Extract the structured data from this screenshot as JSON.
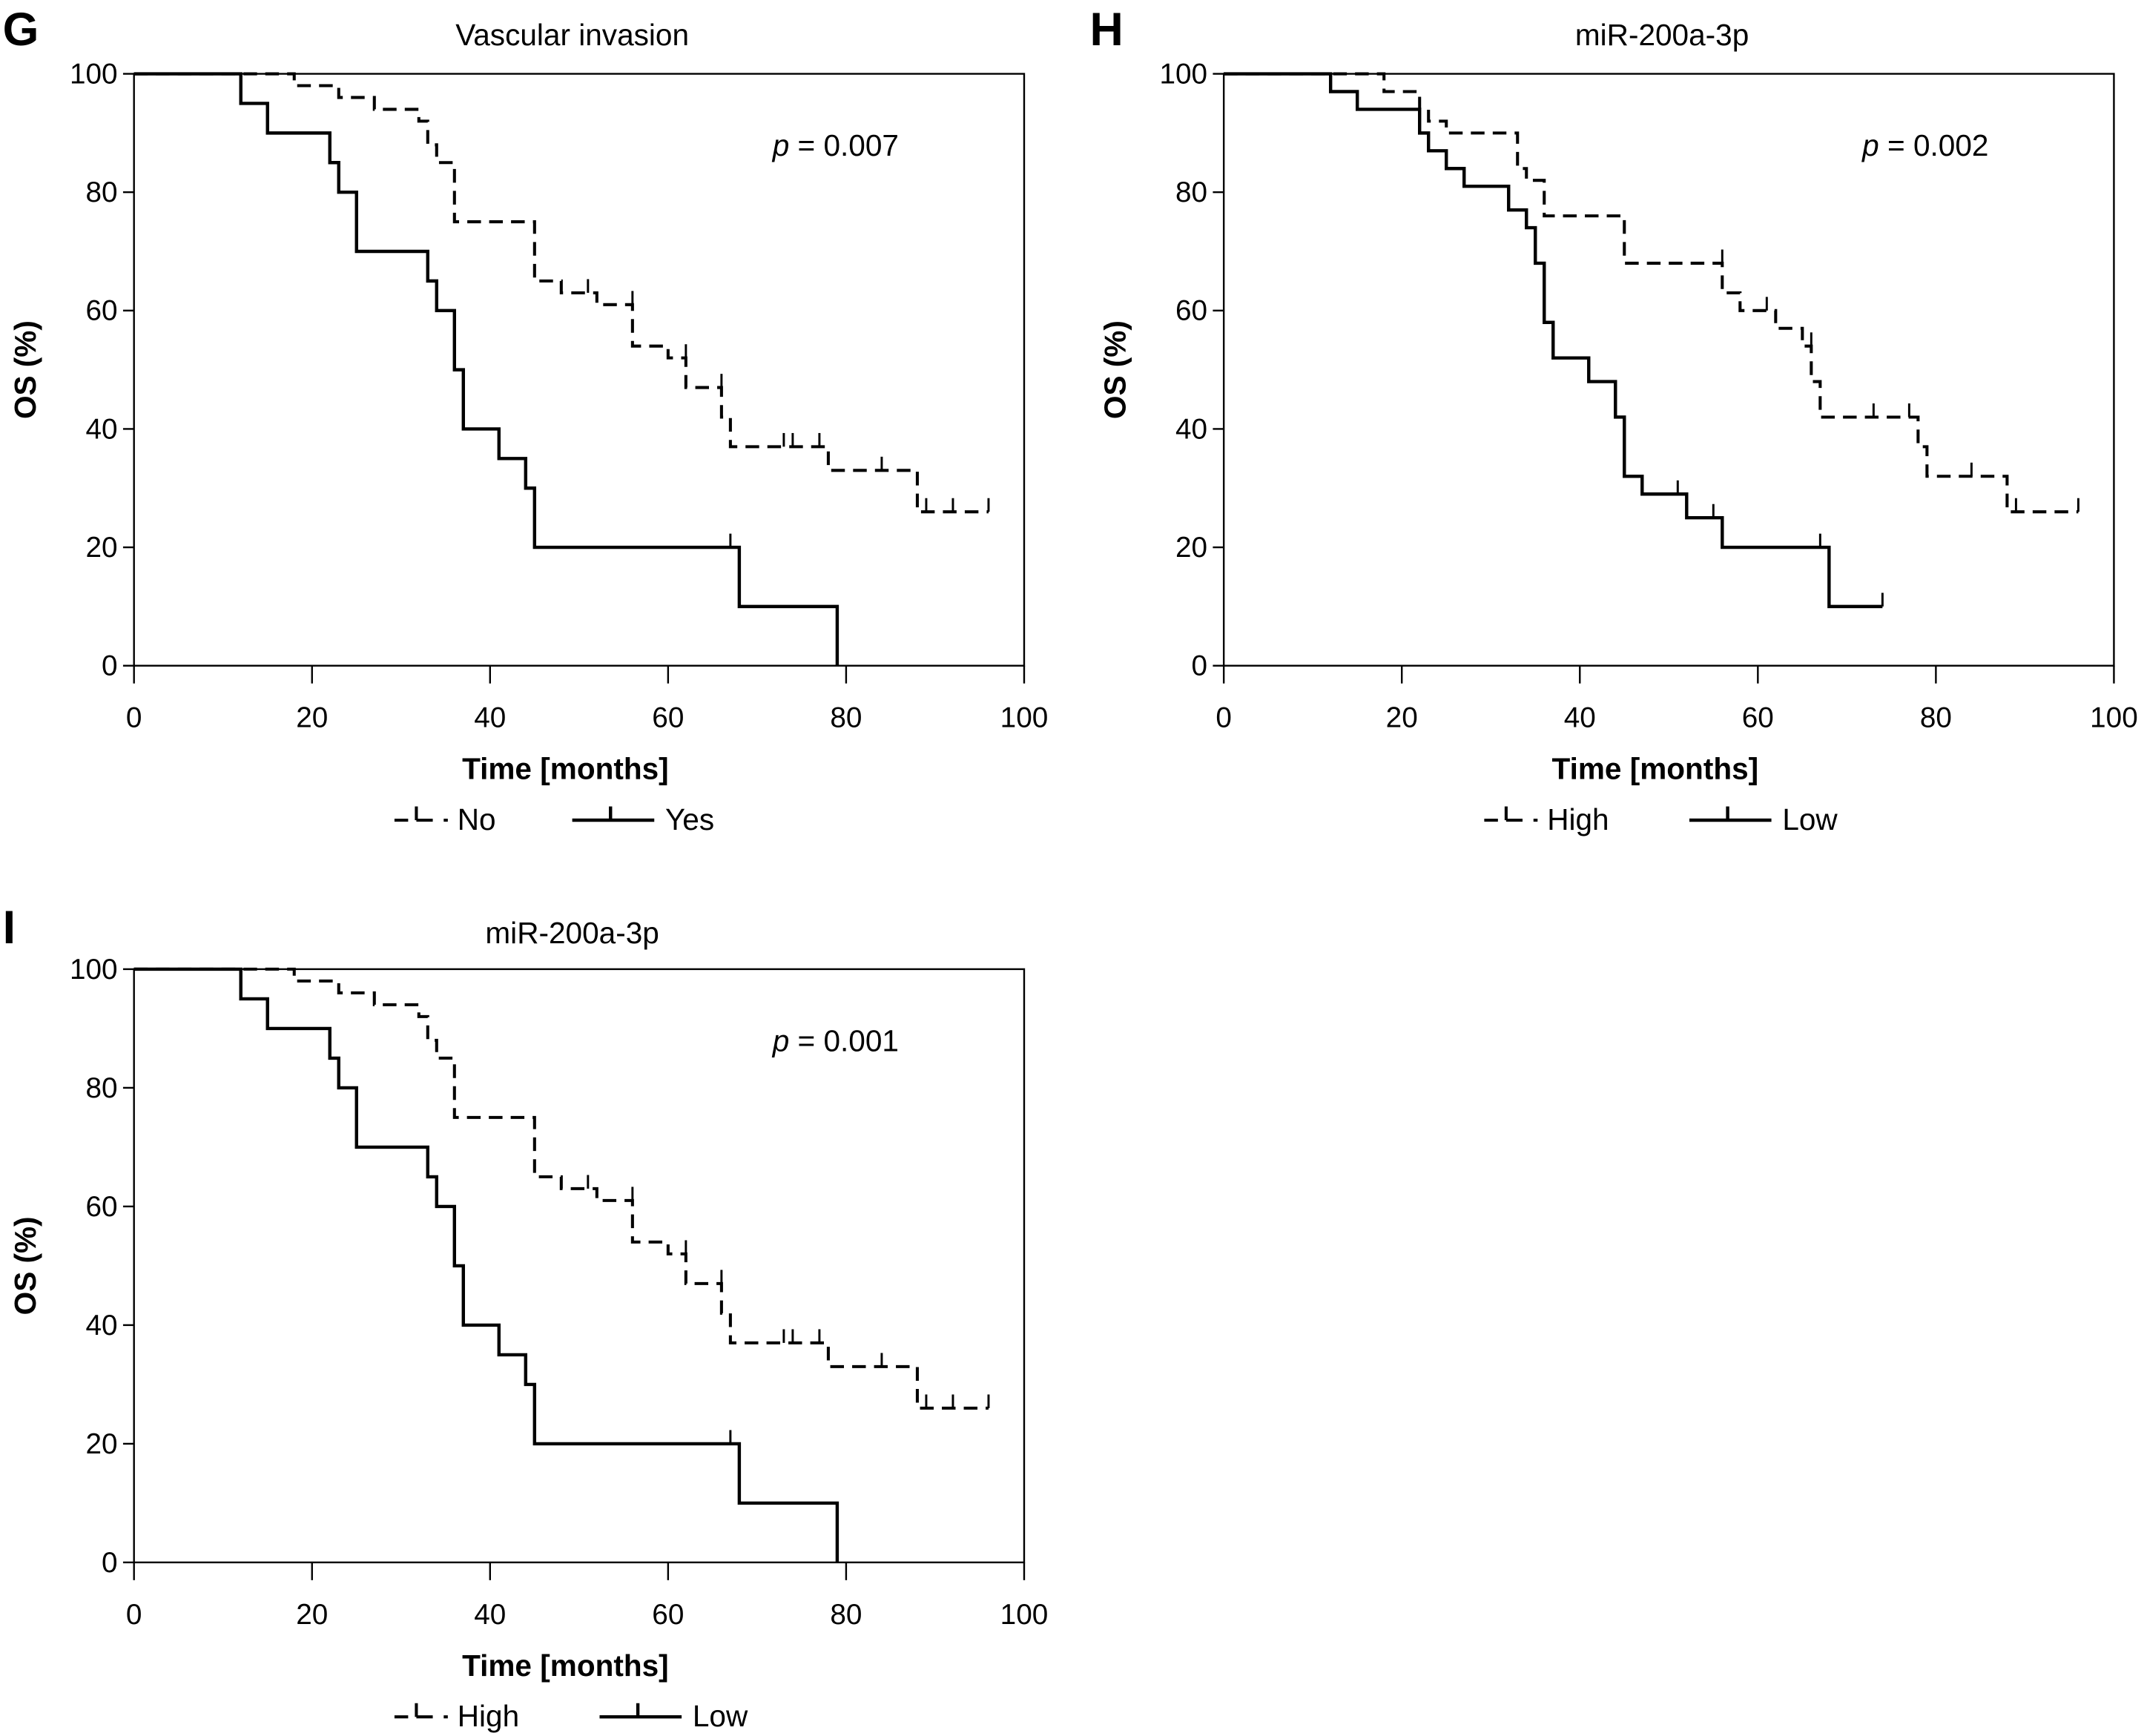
{
  "chart_data": [
    {
      "type": "line",
      "subtype": "kaplan-meier",
      "panel_label": "G",
      "title": "Vascular invasion",
      "xlabel": "Time [months]",
      "ylabel": "OS (%)",
      "xlim": [
        0,
        100
      ],
      "ylim": [
        0,
        100
      ],
      "xticks": [
        "0",
        "20",
        "40",
        "60",
        "80",
        "100"
      ],
      "yticks": [
        "0",
        "20",
        "40",
        "60",
        "80",
        "100"
      ],
      "annotation": {
        "p_label": "p",
        "p_text": " = 0.007"
      },
      "legend": {
        "position": "bottom-center",
        "entries": [
          "No",
          "Yes"
        ]
      },
      "series": [
        {
          "name": "No",
          "style": "dashed",
          "x": [
            0,
            18,
            22,
            23,
            27,
            32,
            33,
            34,
            36,
            44,
            45,
            48,
            52,
            56,
            57,
            60,
            62,
            66,
            67,
            78,
            88,
            96
          ],
          "y": [
            100,
            98,
            98,
            96,
            94,
            92,
            88,
            85,
            75,
            75,
            65,
            63,
            61,
            54,
            54,
            52,
            47,
            42,
            37,
            33,
            26,
            26
          ],
          "censored": [
            [
              51,
              63
            ],
            [
              56,
              61
            ],
            [
              62,
              52
            ],
            [
              66,
              47
            ],
            [
              73,
              37
            ],
            [
              74,
              37
            ],
            [
              77,
              37
            ],
            [
              84,
              33
            ],
            [
              89,
              26
            ],
            [
              92,
              26
            ],
            [
              96,
              26
            ]
          ]
        },
        {
          "name": "Yes",
          "style": "solid",
          "x": [
            0,
            12,
            15,
            22,
            23,
            25,
            33,
            34,
            36,
            37,
            41,
            44,
            45,
            68,
            79
          ],
          "y": [
            100,
            95,
            90,
            85,
            80,
            70,
            65,
            60,
            50,
            40,
            35,
            30,
            20,
            10,
            0
          ],
          "censored": [
            [
              67,
              20
            ]
          ]
        }
      ]
    },
    {
      "type": "line",
      "subtype": "kaplan-meier",
      "panel_label": "H",
      "title": "miR-200a-3p",
      "xlabel": "Time [months]",
      "ylabel": "OS (%)",
      "xlim": [
        0,
        100
      ],
      "ylim": [
        0,
        100
      ],
      "xticks": [
        "0",
        "20",
        "40",
        "60",
        "80",
        "100"
      ],
      "yticks": [
        "0",
        "20",
        "40",
        "60",
        "80",
        "100"
      ],
      "annotation": {
        "p_label": "p",
        "p_text": " = 0.002"
      },
      "legend": {
        "position": "bottom-center",
        "entries": [
          "High",
          "Low"
        ]
      },
      "series": [
        {
          "name": "High",
          "style": "dashed",
          "x": [
            0,
            18,
            22,
            23,
            25,
            33,
            34,
            36,
            45,
            56,
            58,
            62,
            65,
            66,
            67,
            78,
            79,
            88,
            96
          ],
          "y": [
            100,
            97,
            94,
            92,
            90,
            84,
            82,
            76,
            68,
            63,
            60,
            57,
            54,
            48,
            42,
            37,
            32,
            26,
            26
          ],
          "censored": [
            [
              56,
              68
            ],
            [
              61,
              60
            ],
            [
              66,
              54
            ],
            [
              73,
              42
            ],
            [
              77,
              42
            ],
            [
              84,
              32
            ],
            [
              89,
              26
            ],
            [
              96,
              26
            ]
          ]
        },
        {
          "name": "Low",
          "style": "solid",
          "x": [
            0,
            12,
            15,
            22,
            23,
            25,
            27,
            32,
            34,
            35,
            36,
            37,
            41,
            44,
            45,
            47,
            52,
            56,
            68,
            74
          ],
          "y": [
            100,
            97,
            94,
            90,
            87,
            84,
            81,
            77,
            74,
            68,
            58,
            52,
            48,
            42,
            32,
            29,
            25,
            20,
            10,
            10
          ],
          "censored": [
            [
              51,
              29
            ],
            [
              55,
              25
            ],
            [
              67,
              20
            ],
            [
              74,
              10
            ]
          ]
        }
      ]
    },
    {
      "type": "line",
      "subtype": "kaplan-meier",
      "panel_label": "I",
      "title": "miR-200a-3p",
      "xlabel": "Time [months]",
      "ylabel": "OS (%)",
      "xlim": [
        0,
        100
      ],
      "ylim": [
        0,
        100
      ],
      "xticks": [
        "0",
        "20",
        "40",
        "60",
        "80",
        "100"
      ],
      "yticks": [
        "0",
        "20",
        "40",
        "60",
        "80",
        "100"
      ],
      "annotation": {
        "p_label": "p",
        "p_text": " = 0.001"
      },
      "legend": {
        "position": "bottom-center",
        "entries": [
          "High",
          "Low"
        ]
      },
      "series": [
        {
          "name": "High",
          "style": "dashed",
          "x": [
            0,
            18,
            22,
            23,
            27,
            32,
            33,
            34,
            36,
            44,
            45,
            48,
            52,
            56,
            57,
            60,
            62,
            66,
            67,
            78,
            88,
            96
          ],
          "y": [
            100,
            98,
            98,
            96,
            94,
            92,
            88,
            85,
            75,
            75,
            65,
            63,
            61,
            54,
            54,
            52,
            47,
            42,
            37,
            33,
            26,
            26
          ],
          "censored": [
            [
              51,
              63
            ],
            [
              56,
              61
            ],
            [
              62,
              52
            ],
            [
              66,
              47
            ],
            [
              73,
              37
            ],
            [
              74,
              37
            ],
            [
              77,
              37
            ],
            [
              84,
              33
            ],
            [
              89,
              26
            ],
            [
              92,
              26
            ],
            [
              96,
              26
            ]
          ]
        },
        {
          "name": "Low",
          "style": "solid",
          "x": [
            0,
            12,
            15,
            22,
            23,
            25,
            33,
            34,
            36,
            37,
            41,
            44,
            45,
            68,
            79
          ],
          "y": [
            100,
            95,
            90,
            85,
            80,
            70,
            65,
            60,
            50,
            40,
            35,
            30,
            20,
            10,
            0
          ],
          "censored": [
            [
              67,
              20
            ]
          ]
        }
      ]
    }
  ]
}
